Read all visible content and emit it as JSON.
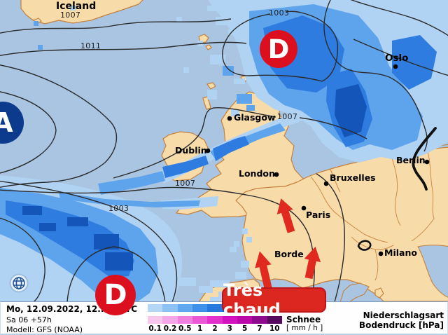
{
  "map": {
    "region_labels": {
      "iceland": "Iceland"
    },
    "cities": [
      {
        "name": "Oslo"
      },
      {
        "name": "Glasgow"
      },
      {
        "name": "Dublin"
      },
      {
        "name": "London"
      },
      {
        "name": "Bruxelles"
      },
      {
        "name": "Paris"
      },
      {
        "name": "Berlin"
      },
      {
        "name": "Milano"
      },
      {
        "name": "Borde"
      }
    ],
    "isobar_labels": [
      {
        "value": "1007"
      },
      {
        "value": "1011"
      },
      {
        "value": "1003"
      },
      {
        "value": "1007"
      },
      {
        "value": "1007"
      },
      {
        "value": "1003"
      }
    ],
    "pressure_centers": [
      {
        "letter": "A",
        "type": "high"
      },
      {
        "letter": "D",
        "type": "low"
      },
      {
        "letter": "D",
        "type": "low"
      }
    ],
    "annotation": {
      "text": "Très chaud"
    }
  },
  "legend": {
    "datetime": "Mo, 12.09.2022, 12..15 UTC",
    "run": "Sa 06 +57h",
    "model": "Modell: GFS (NOAA)",
    "scale_ticks": [
      "0.1",
      "0.2",
      "0.5",
      "1",
      "2",
      "3",
      "5",
      "7",
      "10"
    ],
    "snow_label": "Schnee",
    "unit_label": "[ mm / h ]",
    "type_label": "Niederschlagsart",
    "pressure_label": "Bodendruck [hPa]",
    "rain_colors": [
      "#b4d7f8",
      "#8cc2f4",
      "#60a8f0",
      "#3f90e8",
      "#2678dc",
      "#1660cc",
      "#0c4cb8",
      "#073aa0",
      "#042c8a"
    ],
    "snow_colors": [
      "#f9c6ee",
      "#f5a6e8",
      "#f080e0",
      "#ea58d6",
      "#e231cb",
      "#d411be",
      "#b909a9",
      "#8e0b8d",
      "#57085f"
    ]
  },
  "colors": {
    "sea": "#a9c5e2",
    "land": "#f7dcaa",
    "coastline": "#c5803c",
    "precip_light": "#b0d2f3",
    "precip_medium": "#5ea4ec",
    "precip_dark": "#2f7ce0",
    "precip_darkest": "#1355b8",
    "low_center_red": "#dc0f1e",
    "high_center_blue": "#0c3a8d",
    "warm_arrow_red": "#e02a20"
  }
}
